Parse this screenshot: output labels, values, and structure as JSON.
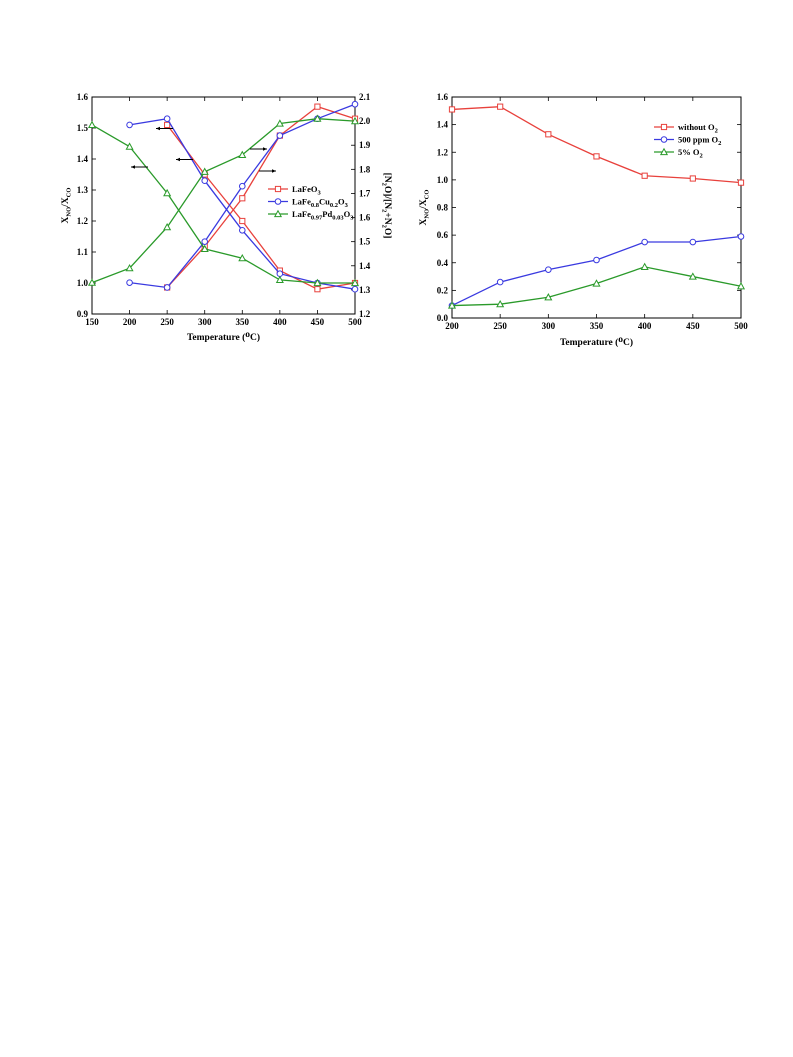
{
  "chart_data": [
    {
      "type": "line",
      "xlabel": "Temperature (°C)",
      "ylabel": "X_NO/X_CO",
      "y2label": "[N2O]/[N2+N2O]",
      "xlim": [
        150,
        500
      ],
      "ylim": [
        0.9,
        1.6
      ],
      "y2lim": [
        1.2,
        2.1
      ],
      "xticks": [
        150,
        200,
        250,
        300,
        350,
        400,
        450,
        500
      ],
      "yticks": [
        0.9,
        1.0,
        1.1,
        1.2,
        1.3,
        1.4,
        1.5,
        1.6
      ],
      "y2ticks": [
        1.2,
        1.3,
        1.4,
        1.5,
        1.6,
        1.7,
        1.8,
        1.9,
        2.0,
        2.1
      ],
      "legend_position": "right",
      "series": [
        {
          "name": "LaFeO3",
          "color": "#e8413c",
          "marker": "square",
          "axis": "left",
          "x": [
            250,
            300,
            350,
            400,
            450,
            500
          ],
          "y": [
            1.51,
            1.35,
            1.2,
            1.04,
            0.98,
            1.0
          ]
        },
        {
          "name": "LaFeO3",
          "color": "#e8413c",
          "marker": "square",
          "axis": "right",
          "x": [
            250,
            300,
            350,
            400,
            450,
            500
          ],
          "y": [
            1.31,
            1.48,
            1.68,
            1.94,
            2.06,
            2.01
          ]
        },
        {
          "name": "LaFe0.8Cu0.2O3",
          "color": "#3a3ae0",
          "marker": "circle",
          "axis": "left",
          "x": [
            200,
            250,
            300,
            350,
            400,
            450,
            500
          ],
          "y": [
            1.51,
            1.53,
            1.33,
            1.17,
            1.03,
            1.0,
            0.98
          ]
        },
        {
          "name": "LaFe0.8Cu0.2O3",
          "color": "#3a3ae0",
          "marker": "circle",
          "axis": "right",
          "x": [
            200,
            250,
            300,
            350,
            400,
            450,
            500
          ],
          "y": [
            1.33,
            1.31,
            1.5,
            1.73,
            1.94,
            2.01,
            2.07
          ]
        },
        {
          "name": "LaFe0.97Pd0.03O3",
          "color": "#2a9a2a",
          "marker": "triangle",
          "axis": "left",
          "x": [
            150,
            200,
            250,
            300,
            350,
            400,
            450,
            500
          ],
          "y": [
            1.51,
            1.44,
            1.29,
            1.11,
            1.08,
            1.01,
            1.0,
            1.0
          ]
        },
        {
          "name": "LaFe0.97Pd0.03O3",
          "color": "#2a9a2a",
          "marker": "triangle",
          "axis": "right",
          "x": [
            150,
            200,
            250,
            300,
            350,
            400,
            450,
            500
          ],
          "y": [
            1.33,
            1.39,
            1.56,
            1.79,
            1.86,
            1.99,
            2.01,
            2.0
          ]
        }
      ],
      "legend": [
        {
          "base": "LaFeO",
          "sub": "3",
          "color": "#e8413c",
          "marker": "square"
        },
        {
          "base": "LaFe",
          "sub": "0.8",
          "base2": "Cu",
          "sub2": "0.2",
          "base3": "O",
          "sub3": "3",
          "color": "#3a3ae0",
          "marker": "circle"
        },
        {
          "base": "LaFe",
          "sub": "0.97",
          "base2": "Pd",
          "sub2": "0.03",
          "base3": "O",
          "sub3": "3",
          "color": "#2a9a2a",
          "marker": "triangle"
        }
      ],
      "annotations": [
        "arrows indicating axis of each curve"
      ]
    },
    {
      "type": "line",
      "xlabel": "Temperature (°C)",
      "ylabel": "X_NO/X_CO",
      "xlim": [
        200,
        500
      ],
      "ylim": [
        0.0,
        1.6
      ],
      "xticks": [
        200,
        250,
        300,
        350,
        400,
        450,
        500
      ],
      "yticks": [
        0.0,
        0.2,
        0.4,
        0.6,
        0.8,
        1.0,
        1.2,
        1.4,
        1.6
      ],
      "legend_position": "top-right",
      "series": [
        {
          "name": "without O2",
          "color": "#e8413c",
          "marker": "square",
          "x": [
            200,
            250,
            300,
            350,
            400,
            450,
            500
          ],
          "y": [
            1.51,
            1.53,
            1.33,
            1.17,
            1.03,
            1.01,
            0.98
          ]
        },
        {
          "name": "500 ppm O2",
          "color": "#3a3ae0",
          "marker": "circle",
          "x": [
            200,
            250,
            300,
            350,
            400,
            450,
            500
          ],
          "y": [
            0.09,
            0.26,
            0.35,
            0.42,
            0.55,
            0.55,
            0.59
          ]
        },
        {
          "name": "5% O2",
          "color": "#2a9a2a",
          "marker": "triangle",
          "x": [
            200,
            250,
            300,
            350,
            400,
            450,
            500
          ],
          "y": [
            0.09,
            0.1,
            0.15,
            0.25,
            0.37,
            0.3,
            0.23
          ]
        }
      ],
      "legend": [
        {
          "base": "without O",
          "sub": "2",
          "color": "#e8413c",
          "marker": "square"
        },
        {
          "base": "500 ppm O",
          "sub": "2",
          "color": "#3a3ae0",
          "marker": "circle"
        },
        {
          "base": "5% O",
          "sub": "2",
          "color": "#2a9a2a",
          "marker": "triangle"
        }
      ]
    }
  ]
}
